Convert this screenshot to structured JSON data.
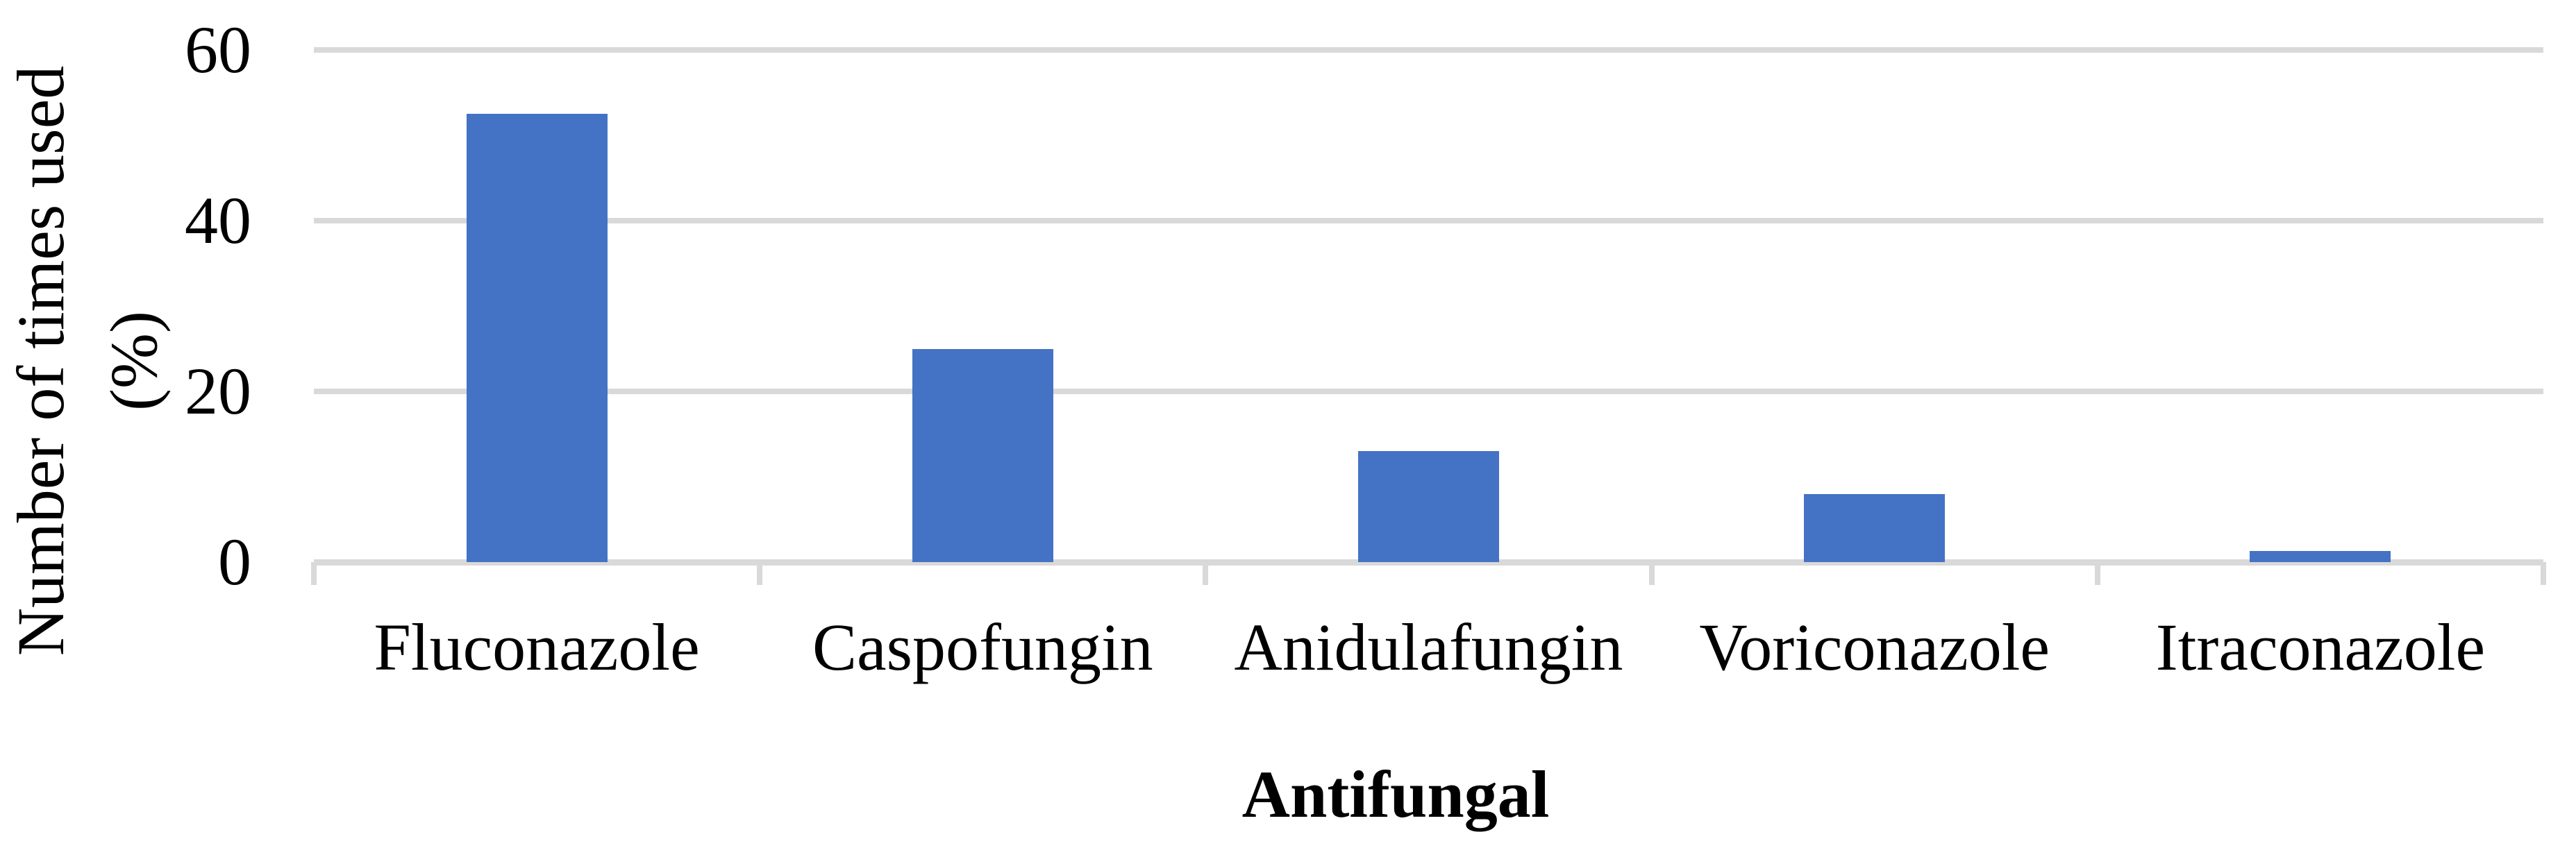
{
  "chart_data": {
    "type": "bar",
    "title": "",
    "categories": [
      "Fluconazole",
      "Caspofungin",
      "Anidulafungin",
      "Voriconazole",
      "Itraconazole"
    ],
    "values": [
      52.5,
      25,
      13,
      8,
      1.3
    ],
    "xlabel": "Antifungal",
    "ylabel_line1": "Number of times used",
    "ylabel_line2": "(%)",
    "ylim": [
      0,
      60
    ],
    "yticks": [
      0,
      20,
      40,
      60
    ],
    "grid": "horizontal gridlines at y ticks",
    "legend": "none",
    "bar_color": "#4472C4",
    "gridline_color": "#D9D9D9",
    "axis_color": "#D9D9D9",
    "text_color": "#000000",
    "background_color": "#FFFFFF"
  }
}
